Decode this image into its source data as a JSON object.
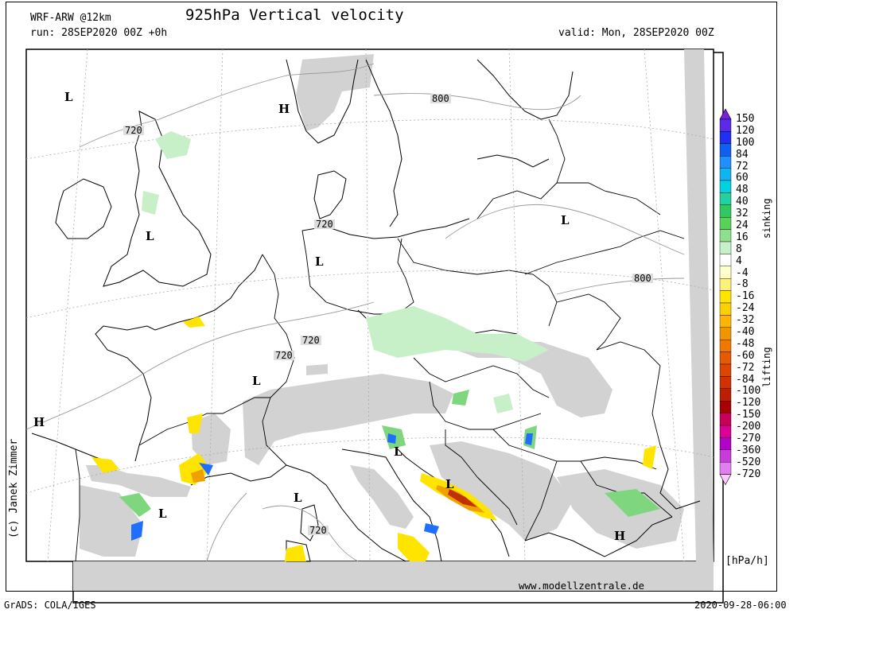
{
  "header": {
    "model": "WRF-ARW @12km",
    "title": "925hPa Vertical velocity",
    "run": "run: 28SEP2020 00Z +0h",
    "valid": "valid: Mon, 28SEP2020 00Z"
  },
  "map": {
    "pressure_labels": [
      "L",
      "L",
      "L",
      "L",
      "L",
      "L",
      "L",
      "L",
      "L",
      "H",
      "H",
      "H"
    ],
    "contour_labels": [
      "720",
      "720",
      "720",
      "720",
      "720",
      "720",
      "800",
      "800"
    ],
    "colors": {
      "sinking_green": "#7ed67e",
      "weak_green": "#c8f0c8",
      "lifting_yellow": "#ffe400",
      "lifting_orange": "#f0a000",
      "strong_red": "#c03000",
      "blue": "#1e6eff",
      "terrain_gray": "#d2d2d2",
      "contour": "#999999"
    }
  },
  "legend": {
    "ticks": [
      "150",
      "120",
      "100",
      "84",
      "72",
      "60",
      "48",
      "40",
      "32",
      "24",
      "16",
      "8",
      "4",
      "-4",
      "-8",
      "-16",
      "-24",
      "-32",
      "-40",
      "-48",
      "-60",
      "-72",
      "-84",
      "-100",
      "-120",
      "-150",
      "-200",
      "-270",
      "-360",
      "-520",
      "-720"
    ],
    "colors": [
      "#7a1fe0",
      "#5a2ae8",
      "#2030f0",
      "#1060f0",
      "#1e90ff",
      "#10b4f0",
      "#00d2e0",
      "#20d2a0",
      "#30c860",
      "#5ad25a",
      "#8ee08e",
      "#c8f0c8",
      "#ffffff",
      "#ffffc8",
      "#fff07a",
      "#ffe400",
      "#ffd000",
      "#ffb400",
      "#f09600",
      "#f07800",
      "#e65a00",
      "#dc4600",
      "#d23200",
      "#be1e00",
      "#aa0000",
      "#c8005a",
      "#dc0096",
      "#b400c8",
      "#c83cdc",
      "#e080f0",
      "#ffc8ff"
    ],
    "units": "[hPa/h]",
    "sinking_label": "sinking",
    "lifting_label": "lifting"
  },
  "footer": {
    "copyright": "(c) Janek Zimmer",
    "website": "www.modellzentrale.de",
    "grads": "GrADS: COLA/IGES",
    "timestamp": "2020-09-28-06:00"
  }
}
